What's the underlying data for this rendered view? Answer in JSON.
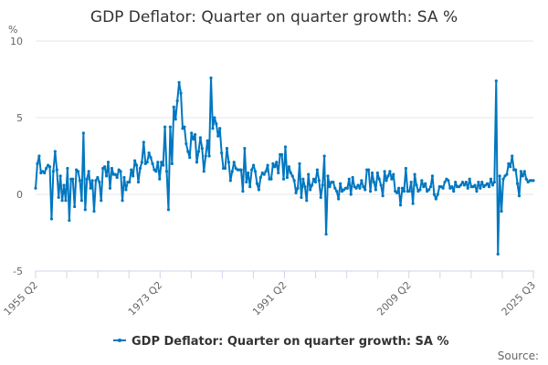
{
  "chart_data": {
    "type": "line",
    "title": "GDP Deflator: Quarter on quarter growth: SA %",
    "ylabel": "%",
    "xlabel": "",
    "ylim": [
      -5,
      10
    ],
    "yticks": [
      -5,
      0,
      5,
      10
    ],
    "grid": true,
    "legend_position": "bottom",
    "x_tick_labels": [
      "1955 Q2",
      "1973 Q2",
      "1991 Q2",
      "2009 Q2",
      "2025 Q3"
    ],
    "x_start": "1955 Q2",
    "x_end": "2025 Q3",
    "series": [
      {
        "name": "GDP Deflator: Quarter on quarter growth: SA %",
        "color": "#0077c0",
        "values": [
          0.4,
          2.0,
          2.5,
          1.4,
          1.5,
          1.4,
          1.7,
          1.9,
          1.8,
          -1.6,
          1.5,
          2.8,
          1.6,
          -0.2,
          1.2,
          -0.4,
          0.6,
          -0.4,
          1.7,
          -1.7,
          1.0,
          1.0,
          -0.8,
          1.6,
          1.5,
          0.9,
          -0.4,
          4.0,
          -1.0,
          1.0,
          1.5,
          0.4,
          0.9,
          -1.1,
          0.9,
          1.1,
          0.8,
          -0.4,
          1.7,
          1.8,
          1.2,
          2.1,
          0.4,
          1.7,
          1.3,
          1.3,
          1.1,
          1.6,
          1.5,
          -0.4,
          1.1,
          0.3,
          0.8,
          0.8,
          1.6,
          1.2,
          2.2,
          1.9,
          0.8,
          1.7,
          2.1,
          3.4,
          2.0,
          2.1,
          2.7,
          2.4,
          2.0,
          1.6,
          1.5,
          2.1,
          1.0,
          2.1,
          1.9,
          4.4,
          1.5,
          -1.0,
          4.4,
          2.0,
          5.7,
          4.9,
          6.1,
          7.3,
          6.6,
          4.3,
          4.4,
          3.3,
          2.8,
          2.4,
          4.0,
          3.6,
          3.9,
          2.1,
          2.8,
          3.7,
          3.0,
          1.5,
          2.5,
          3.5,
          2.5,
          7.6,
          4.3,
          5.0,
          4.6,
          3.8,
          4.3,
          2.7,
          1.7,
          1.7,
          3.0,
          2.1,
          0.9,
          1.5,
          2.1,
          1.7,
          1.6,
          1.6,
          1.6,
          0.2,
          3.0,
          0.8,
          1.4,
          0.5,
          1.6,
          1.9,
          1.5,
          0.7,
          0.3,
          1.1,
          1.4,
          1.3,
          1.5,
          1.9,
          1.0,
          1.0,
          2.0,
          1.8,
          2.1,
          1.4,
          2.6,
          2.6,
          1.0,
          3.1,
          1.1,
          1.8,
          1.4,
          1.2,
          0.9,
          0.1,
          0.4,
          2.0,
          -0.2,
          1.0,
          0.5,
          -0.4,
          1.3,
          0.3,
          0.6,
          1.0,
          0.8,
          1.6,
          0.9,
          -0.2,
          0.6,
          2.5,
          -2.6,
          1.2,
          0.5,
          0.8,
          0.8,
          0.4,
          0.2,
          -0.3,
          0.7,
          0.2,
          0.3,
          0.4,
          0.4,
          1.0,
          0.0,
          1.1,
          0.5,
          0.4,
          0.6,
          0.4,
          0.9,
          0.5,
          0.3,
          1.6,
          1.6,
          0.2,
          1.4,
          0.8,
          0.3,
          1.4,
          1.0,
          0.6,
          -0.1,
          1.5,
          0.9,
          1.2,
          1.5,
          1.0,
          1.3,
          0.2,
          0.1,
          0.4,
          -0.7,
          0.4,
          0.2,
          1.7,
          0.2,
          0.2,
          0.8,
          -0.6,
          1.3,
          0.6,
          0.2,
          0.3,
          0.9,
          0.5,
          0.7,
          0.2,
          0.3,
          0.5,
          1.2,
          0.0,
          -0.3,
          0.0,
          0.5,
          0.5,
          0.4,
          0.8,
          1.0,
          0.9,
          0.4,
          0.5,
          0.2,
          0.8,
          0.5,
          0.5,
          0.6,
          0.8,
          0.6,
          0.8,
          0.4,
          1.0,
          0.5,
          0.5,
          0.6,
          0.2,
          0.8,
          0.4,
          0.8,
          0.5,
          0.6,
          0.7,
          0.5,
          1.0,
          0.6,
          0.8,
          7.4,
          -3.9,
          1.2,
          -1.1,
          1.0,
          1.2,
          1.3,
          2.0,
          1.8,
          2.5,
          1.6,
          1.6,
          0.7,
          -0.1,
          1.5,
          1.2,
          1.5,
          1.0,
          0.8,
          0.9,
          0.9,
          0.9
        ]
      }
    ],
    "source_label": "Source:"
  }
}
